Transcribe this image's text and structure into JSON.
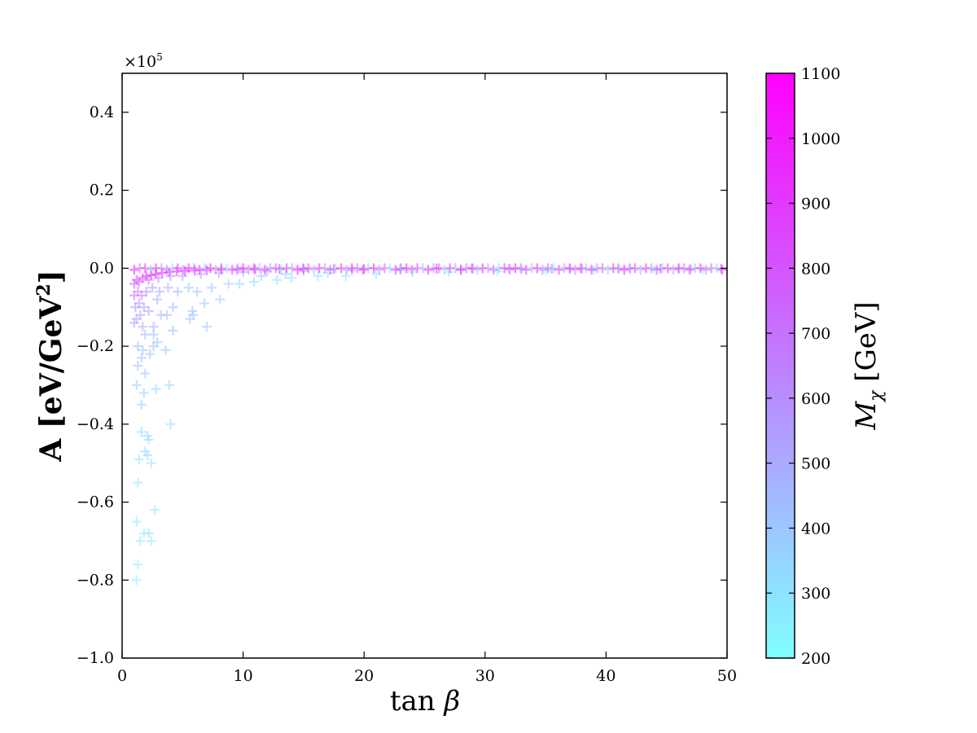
{
  "chart_data": {
    "type": "scatter",
    "marker": "+",
    "xlabel_text": "tan",
    "xlabel_symbol": "β",
    "ylabel_text": "A [eV/GeV",
    "ylabel_sup": "2",
    "ylabel_close": "]",
    "y_offset_text": "×10",
    "y_offset_exp": "5",
    "xlim": [
      0,
      50
    ],
    "ylim": [
      -1.0,
      0.5
    ],
    "x_ticks": [
      0,
      10,
      20,
      30,
      40,
      50
    ],
    "x_tick_labels": [
      "0",
      "10",
      "20",
      "30",
      "40",
      "50"
    ],
    "y_ticks": [
      -1.0,
      -0.8,
      -0.6,
      -0.4,
      -0.2,
      0.0,
      0.2,
      0.4
    ],
    "y_tick_labels": [
      "−1.0",
      "−0.8",
      "−0.6",
      "−0.4",
      "−0.2",
      "0.0",
      "0.2",
      "0.4"
    ],
    "colorbar": {
      "label_symbol": "M",
      "label_sub": "χ",
      "label_unit": "[GeV]",
      "range": [
        200,
        1100
      ],
      "ticks": [
        200,
        300,
        400,
        500,
        600,
        700,
        800,
        900,
        1000,
        1100
      ],
      "tick_labels": [
        "200",
        "300",
        "400",
        "500",
        "600",
        "700",
        "800",
        "900",
        "1000",
        "1100"
      ],
      "color_low": "#80ffff",
      "color_high": "#ff00ff"
    },
    "points": [
      [
        1.2,
        -0.8,
        250
      ],
      [
        1.3,
        -0.76,
        260
      ],
      [
        1.2,
        -0.65,
        270
      ],
      [
        1.5,
        -0.7,
        280
      ],
      [
        1.8,
        -0.68,
        260
      ],
      [
        2.2,
        -0.68,
        300
      ],
      [
        2.4,
        -0.7,
        290
      ],
      [
        2.7,
        -0.62,
        280
      ],
      [
        1.3,
        -0.55,
        300
      ],
      [
        1.4,
        -0.49,
        310
      ],
      [
        1.9,
        -0.47,
        320
      ],
      [
        2.1,
        -0.48,
        330
      ],
      [
        2.4,
        -0.5,
        300
      ],
      [
        1.6,
        -0.42,
        350
      ],
      [
        2.2,
        -0.44,
        340
      ],
      [
        2.1,
        -0.43,
        330
      ],
      [
        4.0,
        -0.4,
        320
      ],
      [
        1.2,
        -0.3,
        380
      ],
      [
        1.6,
        -0.35,
        370
      ],
      [
        1.8,
        -0.32,
        360
      ],
      [
        2.8,
        -0.31,
        350
      ],
      [
        3.9,
        -0.3,
        340
      ],
      [
        1.3,
        -0.25,
        420
      ],
      [
        1.6,
        -0.23,
        410
      ],
      [
        1.9,
        -0.27,
        400
      ],
      [
        1.3,
        -0.2,
        450
      ],
      [
        1.7,
        -0.21,
        430
      ],
      [
        2.3,
        -0.22,
        420
      ],
      [
        2.6,
        -0.2,
        410
      ],
      [
        3.6,
        -0.21,
        400
      ],
      [
        1.9,
        -0.17,
        440
      ],
      [
        2.6,
        -0.17,
        420
      ],
      [
        2.9,
        -0.19,
        410
      ],
      [
        1.0,
        -0.14,
        560
      ],
      [
        1.2,
        -0.13,
        540
      ],
      [
        1.5,
        -0.12,
        520
      ],
      [
        1.7,
        -0.15,
        500
      ],
      [
        2.6,
        -0.15,
        480
      ],
      [
        3.2,
        -0.12,
        450
      ],
      [
        3.7,
        -0.12,
        440
      ],
      [
        4.2,
        -0.16,
        430
      ],
      [
        1.1,
        -0.1,
        600
      ],
      [
        1.4,
        -0.09,
        580
      ],
      [
        1.8,
        -0.1,
        560
      ],
      [
        2.2,
        -0.11,
        540
      ],
      [
        2.9,
        -0.08,
        500
      ],
      [
        4.2,
        -0.1,
        470
      ],
      [
        5.6,
        -0.13,
        420
      ],
      [
        5.9,
        -0.12,
        410
      ],
      [
        7.0,
        -0.15,
        380
      ],
      [
        5.8,
        -0.11,
        400
      ],
      [
        6.8,
        -0.09,
        390
      ],
      [
        8.1,
        -0.08,
        360
      ],
      [
        1.0,
        -0.07,
        700
      ],
      [
        1.3,
        -0.06,
        680
      ],
      [
        1.6,
        -0.07,
        650
      ],
      [
        2.0,
        -0.06,
        600
      ],
      [
        2.5,
        -0.05,
        560
      ],
      [
        3.1,
        -0.06,
        520
      ],
      [
        3.8,
        -0.05,
        490
      ],
      [
        4.6,
        -0.06,
        460
      ],
      [
        5.5,
        -0.05,
        430
      ],
      [
        6.2,
        -0.06,
        410
      ],
      [
        7.4,
        -0.05,
        390
      ],
      [
        8.8,
        -0.04,
        370
      ],
      [
        9.7,
        -0.04,
        360
      ],
      [
        10.9,
        -0.035,
        340
      ],
      [
        12.8,
        -0.03,
        320
      ],
      [
        14.0,
        -0.025,
        310
      ],
      [
        16.2,
        -0.02,
        300
      ],
      [
        18.5,
        -0.02,
        290
      ],
      [
        21.0,
        -0.015,
        280
      ],
      [
        24.0,
        -0.01,
        270
      ],
      [
        27.0,
        -0.01,
        260
      ],
      [
        31.0,
        -0.008,
        250
      ],
      [
        35.0,
        -0.006,
        245
      ],
      [
        39.0,
        -0.005,
        240
      ],
      [
        44.0,
        -0.004,
        235
      ],
      [
        48.0,
        -0.003,
        230
      ],
      [
        1.0,
        -0.04,
        820
      ],
      [
        1.2,
        -0.03,
        860
      ],
      [
        1.4,
        -0.035,
        780
      ],
      [
        1.7,
        -0.025,
        900
      ],
      [
        2.0,
        -0.02,
        950
      ],
      [
        2.4,
        -0.018,
        1000
      ],
      [
        2.8,
        -0.015,
        1050
      ],
      [
        3.3,
        -0.012,
        980
      ],
      [
        3.9,
        -0.01,
        1020
      ],
      [
        4.5,
        -0.008,
        900
      ],
      [
        5.2,
        -0.007,
        1070
      ],
      [
        6.0,
        -0.006,
        1000
      ],
      [
        7.0,
        -0.005,
        950
      ],
      [
        8.2,
        -0.004,
        1050
      ],
      [
        9.5,
        -0.004,
        880
      ],
      [
        11.0,
        -0.003,
        1000
      ],
      [
        13.0,
        -0.002,
        920
      ],
      [
        15.0,
        -0.002,
        1000
      ],
      [
        17.5,
        -0.002,
        850
      ],
      [
        20.0,
        -0.002,
        950
      ],
      [
        23.0,
        -0.001,
        780
      ],
      [
        26.0,
        -0.001,
        1000
      ],
      [
        29.0,
        -0.001,
        700
      ],
      [
        32.0,
        -0.001,
        900
      ],
      [
        35.5,
        -0.001,
        650
      ],
      [
        38.0,
        -0.001,
        800
      ],
      [
        41.0,
        -0.001,
        600
      ],
      [
        44.5,
        -0.001,
        900
      ],
      [
        47.0,
        -0.001,
        550
      ],
      [
        49.5,
        -0.001,
        750
      ],
      [
        2.2,
        -0.03,
        700
      ],
      [
        3.0,
        -0.025,
        650
      ],
      [
        4.0,
        -0.02,
        620
      ],
      [
        5.0,
        -0.02,
        600
      ],
      [
        6.5,
        -0.015,
        560
      ],
      [
        8.0,
        -0.012,
        530
      ],
      [
        10.0,
        -0.01,
        500
      ],
      [
        12.0,
        -0.008,
        480
      ],
      [
        15.0,
        -0.007,
        460
      ],
      [
        19.0,
        -0.006,
        440
      ],
      [
        23.0,
        -0.005,
        420
      ],
      [
        28.0,
        -0.004,
        400
      ],
      [
        33.0,
        -0.003,
        380
      ],
      [
        37.0,
        -0.003,
        360
      ],
      [
        42.0,
        -0.002,
        350
      ],
      [
        46.0,
        -0.002,
        340
      ],
      [
        11.5,
        -0.02,
        400
      ],
      [
        13.5,
        -0.015,
        380
      ],
      [
        17.0,
        -0.012,
        350
      ]
    ]
  }
}
